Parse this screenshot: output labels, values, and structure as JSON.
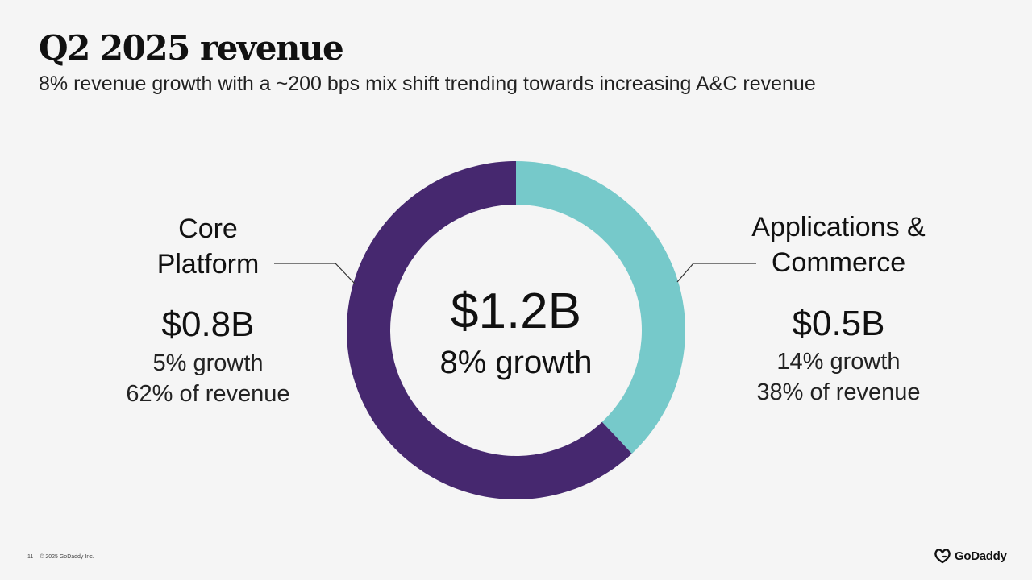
{
  "header": {
    "title": "Q2 2025 revenue",
    "subtitle": "8% revenue growth with a ~200 bps mix shift trending towards increasing A&C revenue"
  },
  "colors": {
    "core": "#46286f",
    "apps": "#76c9ca",
    "leader": "#333333"
  },
  "chart_data": {
    "type": "pie",
    "style": "donut",
    "title": "Q2 2025 revenue",
    "center_value": "$1.2B",
    "center_growth": "8% growth",
    "series": [
      {
        "name": "Applications & Commerce",
        "label_lines": [
          "Applications &",
          "Commerce"
        ],
        "value": 38,
        "revenue_label": "$0.5B",
        "growth_label": "14% growth",
        "share_label": "38% of revenue"
      },
      {
        "name": "Core Platform",
        "label_lines": [
          "Core",
          "Platform"
        ],
        "value": 62,
        "revenue_label": "$0.8B",
        "growth_label": "5% growth",
        "share_label": "62% of revenue"
      }
    ]
  },
  "footer": {
    "page_number": "11",
    "copyright": "© 2025 GoDaddy Inc.",
    "logo_text": "GoDaddy",
    "logo_icon": "godaddy-logo-icon"
  }
}
